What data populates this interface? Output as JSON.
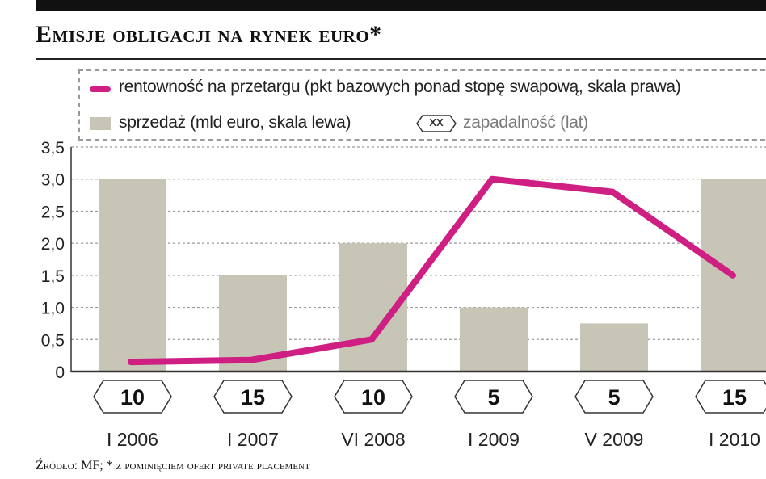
{
  "header": {
    "title": "Emisje obligacji na rynek euro*"
  },
  "legend": {
    "line_label": "rentowność na przetargu (pkt bazowych ponad stopę swapową, skala prawa)",
    "bar_label": "sprzedaż (mld euro, skala lewa)",
    "badge_label": "XX",
    "badge_desc": "zapadalność (lat)"
  },
  "footer": {
    "source": "Źródło: MF; * z pominięciem ofert private placement"
  },
  "colors": {
    "line": "#cf1f83",
    "bar": "#c6c5b6",
    "grid": "#9a9a9a",
    "text": "#222222"
  },
  "chart_data": {
    "type": "bar",
    "categories": [
      "I 2006",
      "I 2007",
      "VI 2008",
      "I 2009",
      "V 2009",
      "I 2010"
    ],
    "ylim": [
      0,
      3.5
    ],
    "yticks": [
      "0",
      "0,5",
      "1,0",
      "1,5",
      "2,0",
      "2,5",
      "3,0",
      "3,5"
    ],
    "grid": true,
    "series": [
      {
        "name": "sprzedaż (mld euro, skala lewa)",
        "type": "bar",
        "values": [
          3.0,
          1.5,
          2.0,
          1.0,
          0.75,
          3.0
        ]
      },
      {
        "name": "rentowność na przetargu (pkt bazowych ponad stopę swapową, skala prawa)",
        "type": "line",
        "values": [
          0.15,
          0.18,
          0.5,
          3.0,
          2.8,
          1.5
        ]
      }
    ],
    "maturities": [
      "10",
      "15",
      "10",
      "5",
      "5",
      "15"
    ]
  }
}
